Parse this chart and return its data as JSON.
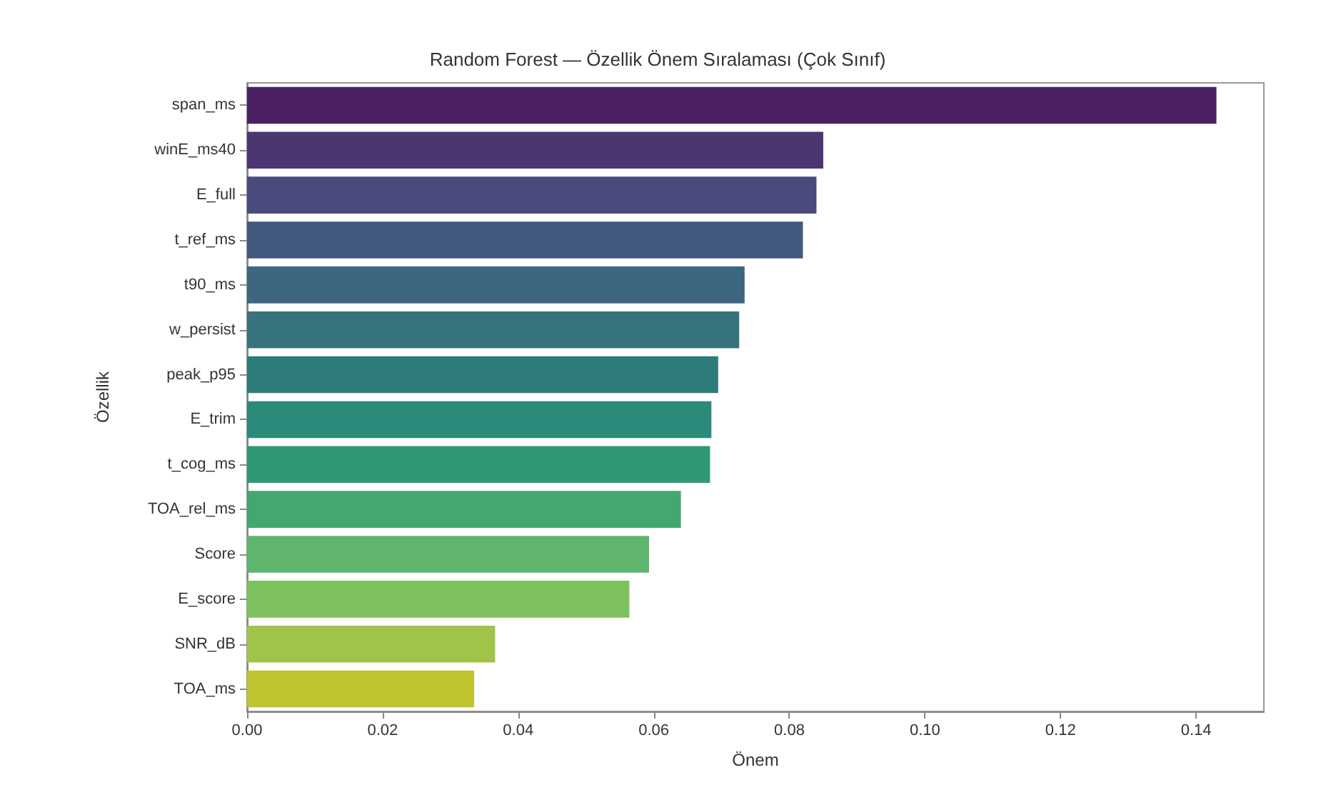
{
  "chart_data": {
    "type": "bar",
    "orientation": "horizontal",
    "title": "Random Forest — Özellik Önem Sıralaması (Çok Sınıf)",
    "xlabel": "Önem",
    "ylabel": "Özellik",
    "categories": [
      "span_ms",
      "winE_ms40",
      "E_full",
      "t_ref_ms",
      "t90_ms",
      "w_persist",
      "peak_p95",
      "E_trim",
      "t_cog_ms",
      "TOA_rel_ms",
      "Score",
      "E_score",
      "SNR_dB",
      "TOA_ms"
    ],
    "values": [
      0.143,
      0.085,
      0.084,
      0.082,
      0.0734,
      0.0726,
      0.0695,
      0.0685,
      0.0683,
      0.064,
      0.0593,
      0.0564,
      0.0366,
      0.0335
    ],
    "colors": [
      "#4a2062",
      "#4b3672",
      "#4a4a7c",
      "#43597f",
      "#3d6781",
      "#37737d",
      "#2e7c7a",
      "#2c8a7a",
      "#309876",
      "#44a671",
      "#5fb56d",
      "#7ec260",
      "#a0c44a",
      "#bfc52e"
    ],
    "xlim": [
      0,
      0.15
    ],
    "xticks": [
      {
        "value": 0,
        "label": "0.00"
      },
      {
        "value": 0.02,
        "label": "0.02"
      },
      {
        "value": 0.04,
        "label": "0.04"
      },
      {
        "value": 0.06,
        "label": "0.06"
      },
      {
        "value": 0.08,
        "label": "0.08"
      },
      {
        "value": 0.1,
        "label": "0.10"
      },
      {
        "value": 0.12,
        "label": "0.12"
      },
      {
        "value": 0.14,
        "label": "0.14"
      }
    ],
    "grid": false
  }
}
